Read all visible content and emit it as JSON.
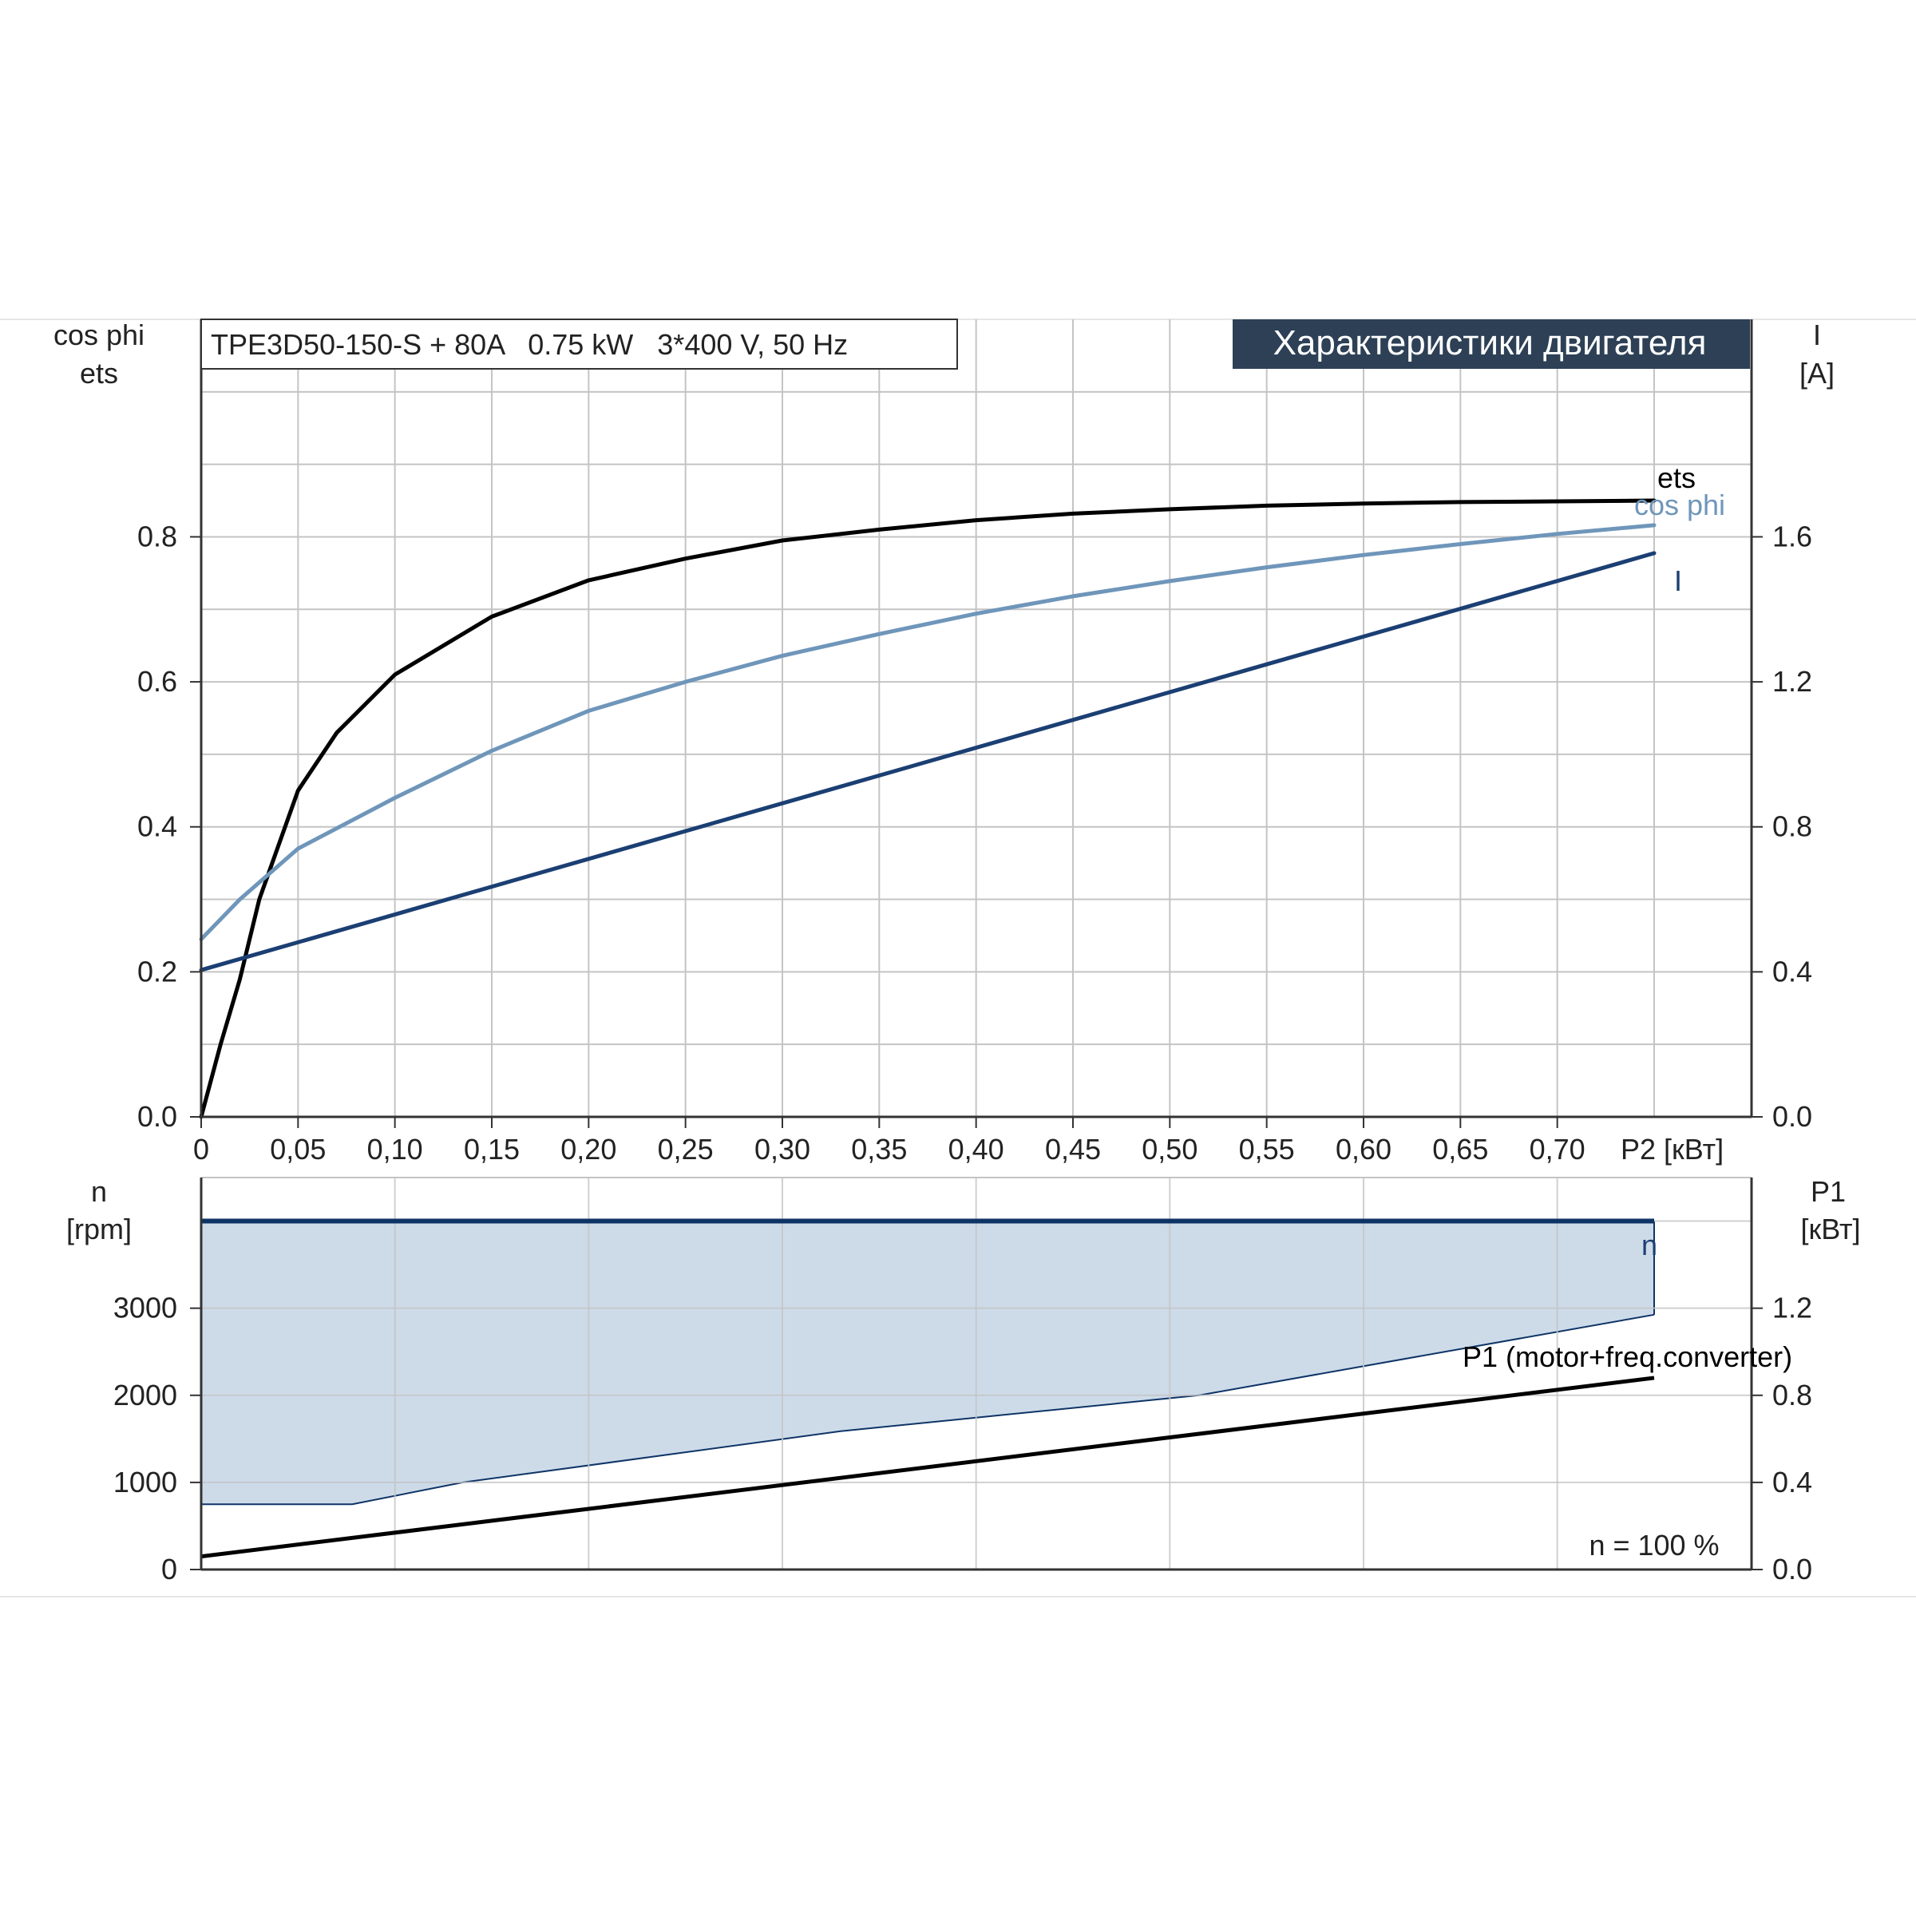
{
  "header": {
    "model_label": "TPE3D50-150-S + 80A   0.75 kW   3*400 V, 50 Hz",
    "section_title": "Характеристики двигателя"
  },
  "colors": {
    "ets": "#000000",
    "cos_phi": "#6f96ba",
    "current": "#1b3f73",
    "speed_line": "#0e3466",
    "speed_fill": "#cddbe9",
    "p1": "#000000",
    "title_bg": "#2d4056",
    "grid": "#c4c4c4"
  },
  "chart_data": [
    {
      "type": "line",
      "left_axis_label": [
        "cos phi",
        "ets"
      ],
      "right_axis_label": [
        "I",
        "[A]"
      ],
      "xlabel": "P2 [кВт]",
      "x_ticks": [
        "0",
        "0,05",
        "0,10",
        "0,15",
        "0,20",
        "0,25",
        "0,30",
        "0,35",
        "0,40",
        "0,45",
        "0,50",
        "0,55",
        "0,60",
        "0,65",
        "0,70"
      ],
      "xlim": [
        0,
        0.8
      ],
      "y_left_ticks": [
        "0.0",
        "0.2",
        "0.4",
        "0.6",
        "0.8"
      ],
      "y_left_lim": [
        0,
        1.1
      ],
      "y_right_ticks": [
        "0.0",
        "0.4",
        "0.8",
        "1.2",
        "1.6"
      ],
      "y_right_lim": [
        0,
        2.2
      ],
      "grid": true,
      "series": [
        {
          "name": "ets",
          "axis": "left",
          "x": [
            0,
            0.01,
            0.02,
            0.03,
            0.05,
            0.07,
            0.1,
            0.15,
            0.2,
            0.25,
            0.3,
            0.35,
            0.4,
            0.45,
            0.5,
            0.55,
            0.6,
            0.65,
            0.7,
            0.75
          ],
          "y": [
            0.0,
            0.1,
            0.19,
            0.3,
            0.45,
            0.53,
            0.61,
            0.69,
            0.74,
            0.77,
            0.795,
            0.81,
            0.823,
            0.832,
            0.838,
            0.843,
            0.846,
            0.848,
            0.849,
            0.85
          ]
        },
        {
          "name": "cos phi",
          "axis": "left",
          "x": [
            0,
            0.02,
            0.05,
            0.1,
            0.15,
            0.2,
            0.25,
            0.3,
            0.35,
            0.4,
            0.45,
            0.5,
            0.55,
            0.6,
            0.65,
            0.7,
            0.75
          ],
          "y": [
            0.245,
            0.3,
            0.37,
            0.44,
            0.505,
            0.56,
            0.6,
            0.636,
            0.666,
            0.694,
            0.718,
            0.739,
            0.758,
            0.775,
            0.79,
            0.804,
            0.816
          ]
        },
        {
          "name": "I",
          "axis": "right",
          "x": [
            0,
            0.75
          ],
          "y": [
            0.405,
            1.555
          ]
        }
      ]
    },
    {
      "type": "line",
      "left_axis_label": [
        "n",
        "[rpm]"
      ],
      "right_axis_label": [
        "P1",
        "[кВт]"
      ],
      "y_left_ticks": [
        "0",
        "1000",
        "2000",
        "3000"
      ],
      "y_left_lim": [
        0,
        4500
      ],
      "y_right_ticks": [
        "0.0",
        "0.4",
        "0.8",
        "1.2"
      ],
      "y_right_lim": [
        0,
        1.8
      ],
      "xlim": [
        0,
        0.8
      ],
      "grid": true,
      "series": [
        {
          "name": "n",
          "axis": "left",
          "x": [
            0,
            0.75
          ],
          "y": [
            4000,
            4000
          ]
        },
        {
          "name": "P1 (motor+freq.converter)",
          "axis": "right",
          "x": [
            0,
            0.75
          ],
          "y": [
            0.06,
            0.88
          ]
        }
      ],
      "band": {
        "x": [
          0,
          0.078,
          0.135,
          0.33,
          0.515,
          0.75
        ],
        "lower": [
          0.3,
          0.3,
          0.4,
          0.635,
          0.8,
          1.17
        ],
        "upper": 1.6,
        "axis": "right"
      },
      "annotation": "n = 100 %"
    }
  ]
}
